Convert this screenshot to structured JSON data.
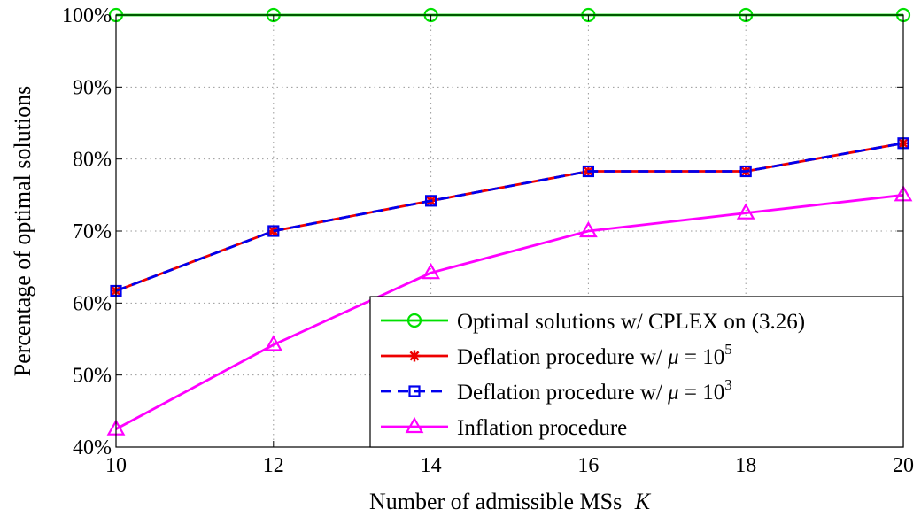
{
  "chart_data": {
    "type": "line",
    "xlabel": "Number of admissible MSs",
    "xlabel_symbol": "K",
    "ylabel": "Percentage of optimal solutions",
    "x": [
      10,
      12,
      14,
      16,
      18,
      20
    ],
    "xlim": [
      10,
      20
    ],
    "ylim": [
      40,
      100
    ],
    "xticks": [
      "10",
      "12",
      "14",
      "16",
      "18",
      "20"
    ],
    "yticks": [
      {
        "value": 40,
        "label": "40%"
      },
      {
        "value": 50,
        "label": "50%"
      },
      {
        "value": 60,
        "label": "60%"
      },
      {
        "value": 70,
        "label": "70%"
      },
      {
        "value": 80,
        "label": "80%"
      },
      {
        "value": 90,
        "label": "90%"
      },
      {
        "value": 100,
        "label": "100%"
      }
    ],
    "grid": true,
    "legend_position": "bottom-right",
    "series": [
      {
        "name": "Optimal solutions w/ CPLEX on (3.26)",
        "legend_parts": {
          "text": "Optimal solutions w/ CPLEX on (3.26)"
        },
        "values": [
          100,
          100,
          100,
          100,
          100,
          100
        ],
        "color": "#00e000",
        "marker": "circle",
        "dash": "solid"
      },
      {
        "name": "Deflation procedure w/ μ = 10^5",
        "legend_parts": {
          "text": "Deflation procedure w/ ",
          "mu": "μ",
          "eq": " = 10",
          "exp": "5"
        },
        "values": [
          61.7,
          70.0,
          74.2,
          78.3,
          78.3,
          82.2
        ],
        "color": "#ee0000",
        "marker": "asterisk",
        "dash": "solid"
      },
      {
        "name": "Deflation procedure w/ μ = 10^3",
        "legend_parts": {
          "text": "Deflation procedure w/ ",
          "mu": "μ",
          "eq": " = 10",
          "exp": "3"
        },
        "values": [
          61.7,
          70.0,
          74.2,
          78.3,
          78.3,
          82.2
        ],
        "color": "#0000ee",
        "marker": "square",
        "dash": "dashed"
      },
      {
        "name": "Inflation procedure",
        "legend_parts": {
          "text": "Inflation procedure"
        },
        "values": [
          42.5,
          54.2,
          64.2,
          70.0,
          72.5,
          75.0
        ],
        "color": "#ff00ff",
        "marker": "triangle",
        "dash": "solid"
      }
    ]
  }
}
